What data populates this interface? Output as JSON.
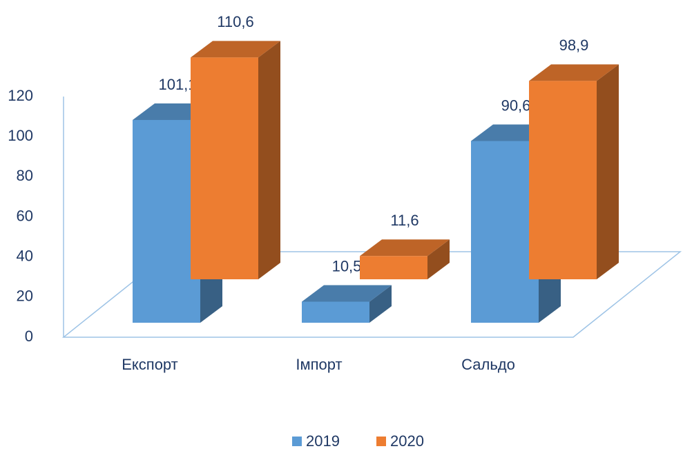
{
  "chart_data": {
    "type": "bar3d",
    "categories": [
      "Експорт",
      "Імпорт",
      "Сальдо"
    ],
    "series": [
      {
        "name": "2019",
        "color": "#5b9bd5",
        "values": [
          101.1,
          10.5,
          90.6
        ],
        "value_labels": [
          "101,1",
          "10,5",
          "90,6"
        ]
      },
      {
        "name": "2020",
        "color": "#ed7d31",
        "values": [
          110.6,
          11.6,
          98.9
        ],
        "value_labels": [
          "110,6",
          "11,6",
          "98,9"
        ]
      }
    ],
    "ylim": [
      0,
      120
    ],
    "yticks": [
      0,
      20,
      40,
      60,
      80,
      100,
      120
    ],
    "legend": "bottom"
  }
}
